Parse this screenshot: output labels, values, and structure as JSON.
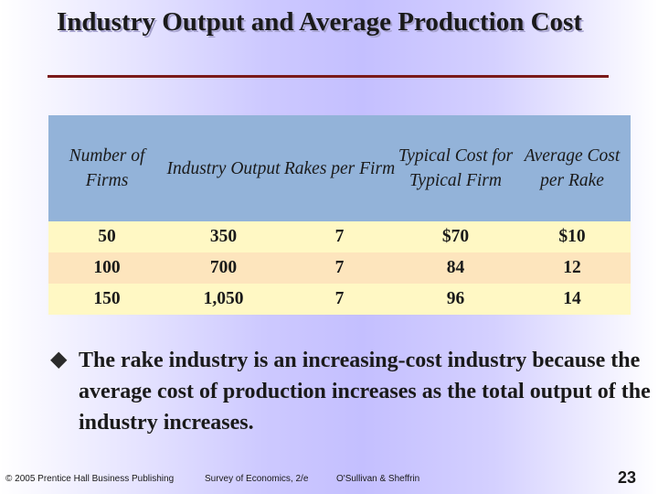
{
  "slide": {
    "title": "Industry Output and Average Production Cost"
  },
  "table": {
    "headers": [
      "Number of Firms",
      "Industry Output",
      "Rakes per Firm",
      "Typical Cost for Typical Firm",
      "Average Cost per Rake"
    ],
    "rows": [
      [
        "50",
        "350",
        "7",
        "$70",
        "$10"
      ],
      [
        "100",
        "700",
        "7",
        "84",
        "12"
      ],
      [
        "150",
        "1,050",
        "7",
        "96",
        "14"
      ]
    ]
  },
  "bullet": {
    "text": "The rake industry is an increasing-cost industry because the average cost of production increases as the total output of the industry increases."
  },
  "footer": {
    "copyright": "© 2005 Prentice Hall Business Publishing",
    "book": "Survey of Economics, 2/e",
    "authors": "O'Sullivan & Sheffrin",
    "page_number": "23"
  }
}
